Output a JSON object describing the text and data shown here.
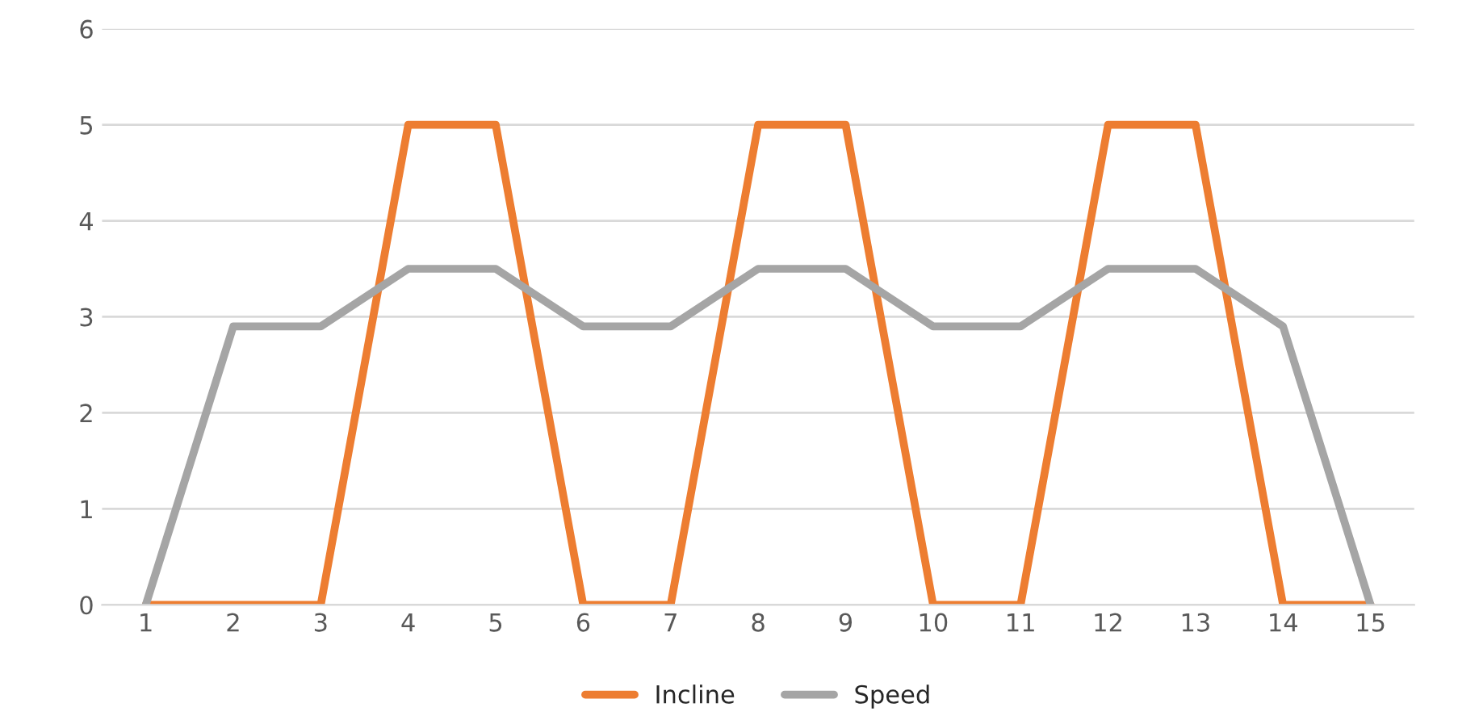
{
  "chart_data": {
    "type": "line",
    "categories": [
      "1",
      "2",
      "3",
      "4",
      "5",
      "6",
      "7",
      "8",
      "9",
      "10",
      "11",
      "12",
      "13",
      "14",
      "15"
    ],
    "series": [
      {
        "name": "Incline",
        "color": "#ed7d31",
        "values": [
          0,
          0,
          0,
          5,
          5,
          0,
          0,
          5,
          5,
          0,
          0,
          5,
          5,
          0,
          0
        ]
      },
      {
        "name": "Speed",
        "color": "#a5a5a5",
        "values": [
          0,
          2.9,
          2.9,
          3.5,
          3.5,
          2.9,
          2.9,
          3.5,
          3.5,
          2.9,
          2.9,
          3.5,
          3.5,
          2.9,
          0
        ]
      }
    ],
    "ylim": [
      0,
      6
    ],
    "yticks": [
      0,
      1,
      2,
      3,
      4,
      5,
      6
    ],
    "grid": "y",
    "legend": "bottom",
    "marker": "none",
    "line_style": "solid"
  }
}
